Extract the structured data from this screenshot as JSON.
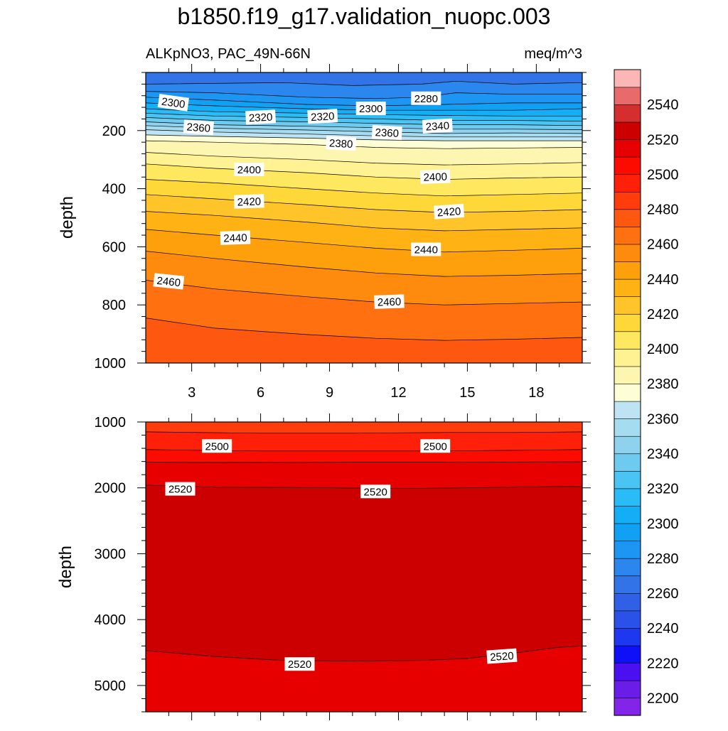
{
  "figure": {
    "title": "b1850.f19_g17.validation_nuopc.003",
    "left_subtitle": "ALKpNO3, PAC_49N-66N",
    "right_subtitle": "meq/m^3"
  },
  "chart_data": [
    {
      "type": "contour",
      "name": "upper-panel",
      "xlabel": "",
      "ylabel": "depth",
      "xlim": [
        1,
        20
      ],
      "ylim": [
        1000,
        0
      ],
      "x_ticks": [
        3,
        6,
        9,
        12,
        15,
        18
      ],
      "x_tick_labels": [
        "3",
        "6",
        "9",
        "12",
        "15",
        "18"
      ],
      "y_ticks": [
        200,
        400,
        600,
        800,
        1000
      ],
      "y_tick_labels": [
        "200",
        "400",
        "600",
        "800",
        "1000"
      ],
      "contour_lines": [
        {
          "value": 2270,
          "x": [
            1,
            7,
            10,
            13,
            14.5,
            17,
            20
          ],
          "depth": [
            40,
            35,
            45,
            40,
            30,
            40,
            35
          ]
        },
        {
          "value": 2280,
          "x": [
            1,
            4,
            8,
            11,
            13,
            14.5,
            17,
            20
          ],
          "depth": [
            65,
            70,
            85,
            90,
            85,
            70,
            75,
            75
          ]
        },
        {
          "value": 2290,
          "x": [
            1,
            4,
            8,
            11,
            14,
            17,
            20
          ],
          "depth": [
            85,
            95,
            110,
            115,
            110,
            105,
            105
          ]
        },
        {
          "value": 2300,
          "x": [
            1,
            4,
            8,
            11,
            14,
            17,
            20
          ],
          "depth": [
            105,
            115,
            125,
            130,
            130,
            130,
            125
          ]
        },
        {
          "value": 2310,
          "x": [
            1,
            4,
            8,
            11,
            14,
            17,
            20
          ],
          "depth": [
            125,
            135,
            140,
            145,
            148,
            150,
            150
          ]
        },
        {
          "value": 2320,
          "x": [
            1,
            4,
            8,
            11,
            14,
            17,
            20
          ],
          "depth": [
            140,
            150,
            155,
            160,
            165,
            165,
            168
          ]
        },
        {
          "value": 2330,
          "x": [
            1,
            4,
            8,
            11,
            14,
            17,
            20
          ],
          "depth": [
            155,
            165,
            170,
            175,
            180,
            180,
            183
          ]
        },
        {
          "value": 2340,
          "x": [
            1,
            4,
            8,
            11,
            14,
            17,
            20
          ],
          "depth": [
            170,
            180,
            185,
            190,
            195,
            195,
            197
          ]
        },
        {
          "value": 2350,
          "x": [
            1,
            4,
            8,
            11,
            14,
            17,
            20
          ],
          "depth": [
            183,
            192,
            198,
            204,
            210,
            208,
            210
          ]
        },
        {
          "value": 2360,
          "x": [
            1,
            4,
            8,
            11,
            14,
            17,
            20
          ],
          "depth": [
            197,
            205,
            212,
            218,
            222,
            222,
            222
          ]
        },
        {
          "value": 2370,
          "x": [
            1,
            4,
            8,
            11,
            14,
            17,
            20
          ],
          "depth": [
            215,
            220,
            226,
            232,
            235,
            235,
            235
          ]
        },
        {
          "value": 2380,
          "x": [
            1,
            4,
            8,
            11,
            14,
            17,
            20
          ],
          "depth": [
            235,
            240,
            248,
            258,
            262,
            260,
            258
          ]
        },
        {
          "value": 2390,
          "x": [
            1,
            4,
            8,
            11,
            14,
            17,
            20
          ],
          "depth": [
            275,
            288,
            300,
            312,
            318,
            315,
            310
          ]
        },
        {
          "value": 2400,
          "x": [
            1,
            4,
            8,
            11,
            14,
            17,
            20
          ],
          "depth": [
            315,
            330,
            345,
            360,
            368,
            363,
            360
          ]
        },
        {
          "value": 2410,
          "x": [
            1,
            4,
            8,
            11,
            14,
            17,
            20
          ],
          "depth": [
            368,
            380,
            400,
            415,
            425,
            420,
            415
          ]
        },
        {
          "value": 2420,
          "x": [
            1,
            4,
            8,
            11,
            14,
            17,
            20
          ],
          "depth": [
            420,
            435,
            455,
            472,
            482,
            478,
            472
          ]
        },
        {
          "value": 2430,
          "x": [
            1,
            4,
            8,
            11,
            14,
            17,
            20
          ],
          "depth": [
            478,
            492,
            515,
            535,
            545,
            540,
            535
          ]
        },
        {
          "value": 2440,
          "x": [
            1,
            4,
            8,
            11,
            14,
            17,
            20
          ],
          "depth": [
            540,
            560,
            585,
            605,
            618,
            612,
            605
          ]
        },
        {
          "value": 2450,
          "x": [
            1,
            4,
            8,
            11,
            14,
            17,
            20
          ],
          "depth": [
            615,
            640,
            670,
            690,
            702,
            698,
            692
          ]
        },
        {
          "value": 2460,
          "x": [
            1,
            4,
            8,
            11,
            14,
            17,
            20
          ],
          "depth": [
            715,
            745,
            772,
            790,
            800,
            795,
            790
          ]
        },
        {
          "value": 2470,
          "x": [
            1,
            4,
            8,
            11,
            14,
            17,
            20
          ],
          "depth": [
            845,
            880,
            902,
            915,
            922,
            918,
            912
          ]
        }
      ],
      "labels": [
        {
          "text": "2300",
          "x": 2.2,
          "depth": 105,
          "angle": 8
        },
        {
          "text": "2320",
          "x": 6.0,
          "depth": 155,
          "angle": -3
        },
        {
          "text": "2320",
          "x": 8.7,
          "depth": 152,
          "angle": -3
        },
        {
          "text": "2300",
          "x": 10.8,
          "depth": 125,
          "angle": 0
        },
        {
          "text": "2280",
          "x": 13.2,
          "depth": 90,
          "angle": 0
        },
        {
          "text": "2340",
          "x": 13.7,
          "depth": 185,
          "angle": -3
        },
        {
          "text": "2360",
          "x": 11.5,
          "depth": 208,
          "angle": 3
        },
        {
          "text": "2360",
          "x": 3.3,
          "depth": 190,
          "angle": 4
        },
        {
          "text": "2380",
          "x": 9.5,
          "depth": 245,
          "angle": 3
        },
        {
          "text": "2400",
          "x": 5.5,
          "depth": 335,
          "angle": 0
        },
        {
          "text": "2400",
          "x": 13.6,
          "depth": 360,
          "angle": -2
        },
        {
          "text": "2420",
          "x": 5.5,
          "depth": 445,
          "angle": -2
        },
        {
          "text": "2420",
          "x": 14.2,
          "depth": 480,
          "angle": -4
        },
        {
          "text": "2440",
          "x": 4.9,
          "depth": 570,
          "angle": -2
        },
        {
          "text": "2440",
          "x": 13.2,
          "depth": 610,
          "angle": 0
        },
        {
          "text": "2460",
          "x": 2.0,
          "depth": 720,
          "angle": 6
        },
        {
          "text": "2460",
          "x": 11.6,
          "depth": 790,
          "angle": -2
        }
      ]
    },
    {
      "type": "contour",
      "name": "lower-panel",
      "xlabel": "",
      "ylabel": "depth",
      "xlim": [
        1,
        20
      ],
      "ylim": [
        5400,
        1000
      ],
      "x_ticks": [
        3,
        6,
        9,
        12,
        15,
        18
      ],
      "y_ticks": [
        1000,
        2000,
        3000,
        4000,
        5000
      ],
      "y_tick_labels": [
        "1000",
        "2000",
        "3000",
        "4000",
        "5000"
      ],
      "contour_lines": [
        {
          "value": 2490,
          "x": [
            1,
            6,
            10,
            14,
            17,
            20
          ],
          "depth": [
            1150,
            1170,
            1170,
            1160,
            1160,
            1150
          ]
        },
        {
          "value": 2500,
          "x": [
            1,
            6,
            10,
            14,
            17,
            20
          ],
          "depth": [
            1420,
            1440,
            1440,
            1440,
            1430,
            1420
          ]
        },
        {
          "value": 2510,
          "x": [
            1,
            6,
            10,
            14,
            17,
            20
          ],
          "depth": [
            1610,
            1615,
            1610,
            1610,
            1608,
            1605
          ]
        },
        {
          "value": 2520,
          "x": [
            1,
            4,
            8,
            12,
            15,
            18,
            20
          ],
          "depth": [
            1960,
            1990,
            1995,
            2010,
            2000,
            1985,
            1980
          ]
        },
        {
          "value": 2520,
          "x": [
            1,
            4,
            7,
            10,
            13,
            15,
            17,
            19,
            20
          ],
          "depth": [
            4470,
            4560,
            4620,
            4630,
            4620,
            4590,
            4510,
            4420,
            4400
          ]
        }
      ],
      "labels": [
        {
          "text": "2500",
          "x": 4.1,
          "depth": 1370,
          "angle": 0
        },
        {
          "text": "2500",
          "x": 13.6,
          "depth": 1370,
          "angle": 0
        },
        {
          "text": "2520",
          "x": 2.5,
          "depth": 2020,
          "angle": 0
        },
        {
          "text": "2520",
          "x": 11.0,
          "depth": 2060,
          "angle": 0
        },
        {
          "text": "2520",
          "x": 7.7,
          "depth": 4680,
          "angle": 0
        },
        {
          "text": "2520",
          "x": 16.5,
          "depth": 4560,
          "angle": -4
        }
      ]
    }
  ],
  "colorbar": {
    "tick_labels": [
      "2540",
      "2520",
      "2500",
      "2480",
      "2460",
      "2440",
      "2420",
      "2400",
      "2380",
      "2360",
      "2340",
      "2320",
      "2300",
      "2280",
      "2260",
      "2240",
      "2220",
      "2200"
    ],
    "bins": [
      {
        "lo": 2190,
        "hi": 2200,
        "color": "#8225e8"
      },
      {
        "lo": 2200,
        "hi": 2210,
        "color": "#6a1de8"
      },
      {
        "lo": 2210,
        "hi": 2220,
        "color": "#4a10f0"
      },
      {
        "lo": 2220,
        "hi": 2230,
        "color": "#1010f8"
      },
      {
        "lo": 2230,
        "hi": 2240,
        "color": "#1e38f0"
      },
      {
        "lo": 2240,
        "hi": 2250,
        "color": "#2a52e8"
      },
      {
        "lo": 2250,
        "hi": 2260,
        "color": "#3060e6"
      },
      {
        "lo": 2260,
        "hi": 2270,
        "color": "#3274e8"
      },
      {
        "lo": 2270,
        "hi": 2280,
        "color": "#2b86ee"
      },
      {
        "lo": 2280,
        "hi": 2290,
        "color": "#1c96f2"
      },
      {
        "lo": 2290,
        "hi": 2300,
        "color": "#10a0f4"
      },
      {
        "lo": 2300,
        "hi": 2310,
        "color": "#14aef6"
      },
      {
        "lo": 2310,
        "hi": 2320,
        "color": "#2abcf6"
      },
      {
        "lo": 2320,
        "hi": 2330,
        "color": "#4ac4f2"
      },
      {
        "lo": 2330,
        "hi": 2340,
        "color": "#6ecaee"
      },
      {
        "lo": 2340,
        "hi": 2350,
        "color": "#8ed2ee"
      },
      {
        "lo": 2350,
        "hi": 2360,
        "color": "#a6dcf0"
      },
      {
        "lo": 2360,
        "hi": 2370,
        "color": "#bee4f4"
      },
      {
        "lo": 2370,
        "hi": 2380,
        "color": "#fefed6"
      },
      {
        "lo": 2380,
        "hi": 2390,
        "color": "#fcf6b0"
      },
      {
        "lo": 2390,
        "hi": 2400,
        "color": "#fef292"
      },
      {
        "lo": 2400,
        "hi": 2410,
        "color": "#fee860"
      },
      {
        "lo": 2410,
        "hi": 2420,
        "color": "#fed838"
      },
      {
        "lo": 2420,
        "hi": 2430,
        "color": "#fec42a"
      },
      {
        "lo": 2430,
        "hi": 2440,
        "color": "#feb214"
      },
      {
        "lo": 2440,
        "hi": 2450,
        "color": "#fea00c"
      },
      {
        "lo": 2450,
        "hi": 2460,
        "color": "#fe8a0e"
      },
      {
        "lo": 2460,
        "hi": 2470,
        "color": "#fe7010"
      },
      {
        "lo": 2470,
        "hi": 2480,
        "color": "#fe5810"
      },
      {
        "lo": 2480,
        "hi": 2490,
        "color": "#fe3c0c"
      },
      {
        "lo": 2490,
        "hi": 2500,
        "color": "#fe2008"
      },
      {
        "lo": 2500,
        "hi": 2510,
        "color": "#fb0b00"
      },
      {
        "lo": 2510,
        "hi": 2520,
        "color": "#e60000"
      },
      {
        "lo": 2520,
        "hi": 2530,
        "color": "#cc0000"
      },
      {
        "lo": 2530,
        "hi": 2540,
        "color": "#d42e2e"
      },
      {
        "lo": 2540,
        "hi": 2550,
        "color": "#e86a6a"
      },
      {
        "lo": 2550,
        "hi": 2560,
        "color": "#fcb6b6"
      }
    ]
  }
}
